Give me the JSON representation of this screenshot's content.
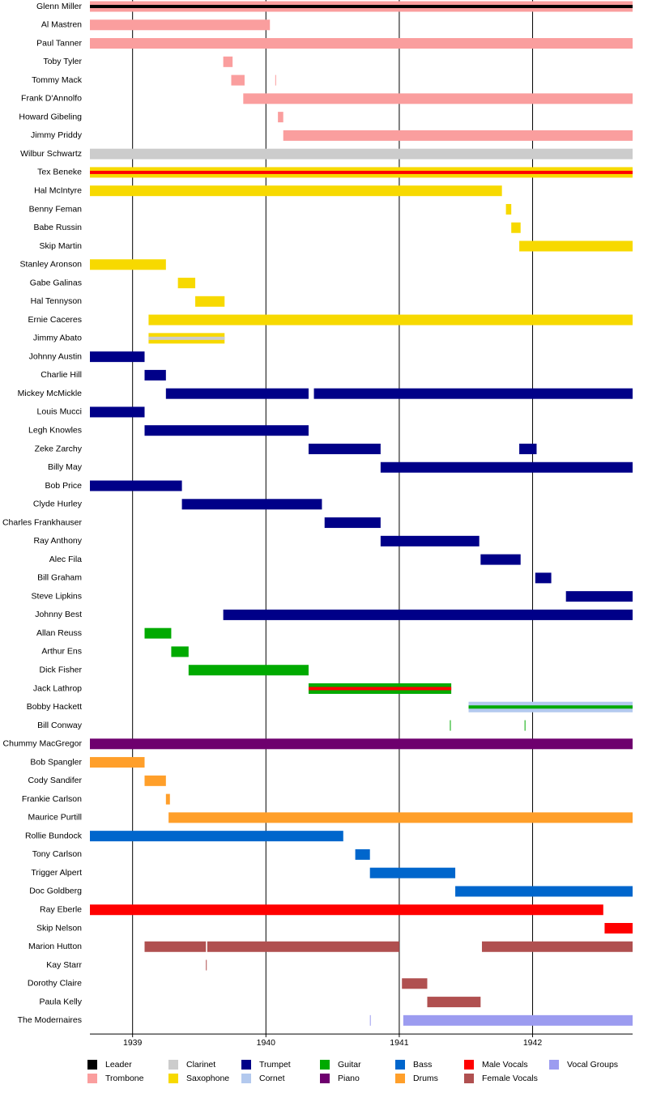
{
  "chart_data": {
    "type": "timeline",
    "xlim": [
      1938.68,
      1942.75
    ],
    "xticks": [
      1939,
      1940,
      1941,
      1942
    ],
    "grid": true,
    "roles": [
      {
        "name": "Leader",
        "color": "#000000"
      },
      {
        "name": "Trombone",
        "color": "#fa9e9e"
      },
      {
        "name": "Clarinet",
        "color": "#cccccc"
      },
      {
        "name": "Saxophone",
        "color": "#f7d900"
      },
      {
        "name": "Trumpet",
        "color": "#000088"
      },
      {
        "name": "Cornet",
        "color": "#b3c9ee"
      },
      {
        "name": "Guitar",
        "color": "#00aa00"
      },
      {
        "name": "Piano",
        "color": "#6e006e"
      },
      {
        "name": "Bass",
        "color": "#0066cc"
      },
      {
        "name": "Drums",
        "color": "#ff9f2a"
      },
      {
        "name": "Male Vocals",
        "color": "#ff0000"
      },
      {
        "name": "Female Vocals",
        "color": "#b05050"
      },
      {
        "name": "Vocal Groups",
        "color": "#9c9cf0"
      }
    ],
    "members": [
      {
        "name": "Glenn Miller",
        "bars": [
          {
            "start": 1938.68,
            "end": 1942.75,
            "role": 1,
            "stripe": 0
          }
        ]
      },
      {
        "name": "Al Mastren",
        "bars": [
          {
            "start": 1938.68,
            "end": 1940.03,
            "role": 1
          }
        ]
      },
      {
        "name": "Paul Tanner",
        "bars": [
          {
            "start": 1938.68,
            "end": 1942.75,
            "role": 1
          }
        ]
      },
      {
        "name": "Toby Tyler",
        "bars": [
          {
            "start": 1939.68,
            "end": 1939.75,
            "role": 1
          }
        ]
      },
      {
        "name": "Tommy Mack",
        "bars": [
          {
            "start": 1939.74,
            "end": 1939.84,
            "role": 1
          },
          {
            "start": 1940.07,
            "end": 1940.075,
            "role": 1
          }
        ]
      },
      {
        "name": "Frank D'Annolfo",
        "bars": [
          {
            "start": 1939.83,
            "end": 1942.75,
            "role": 1
          }
        ]
      },
      {
        "name": "Howard Gibeling",
        "bars": [
          {
            "start": 1940.09,
            "end": 1940.13,
            "role": 1
          }
        ]
      },
      {
        "name": "Jimmy Priddy",
        "bars": [
          {
            "start": 1940.13,
            "end": 1942.75,
            "role": 1
          }
        ]
      },
      {
        "name": "Wilbur Schwartz",
        "bars": [
          {
            "start": 1938.68,
            "end": 1942.75,
            "role": 2
          }
        ]
      },
      {
        "name": "Tex Beneke",
        "bars": [
          {
            "start": 1938.68,
            "end": 1942.75,
            "role": 3,
            "stripe": 10
          }
        ]
      },
      {
        "name": "Hal McIntyre",
        "bars": [
          {
            "start": 1938.68,
            "end": 1941.77,
            "role": 3
          }
        ]
      },
      {
        "name": "Benny Feman",
        "bars": [
          {
            "start": 1941.8,
            "end": 1941.84,
            "role": 3
          }
        ]
      },
      {
        "name": "Babe Russin",
        "bars": [
          {
            "start": 1941.84,
            "end": 1941.91,
            "role": 3
          }
        ]
      },
      {
        "name": "Skip Martin",
        "bars": [
          {
            "start": 1941.9,
            "end": 1942.75,
            "role": 3
          }
        ]
      },
      {
        "name": "Stanley Aronson",
        "bars": [
          {
            "start": 1938.68,
            "end": 1939.25,
            "role": 3
          }
        ]
      },
      {
        "name": "Gabe Galinas",
        "bars": [
          {
            "start": 1939.34,
            "end": 1939.47,
            "role": 3
          }
        ]
      },
      {
        "name": "Hal Tennyson",
        "bars": [
          {
            "start": 1939.47,
            "end": 1939.69,
            "role": 3
          }
        ]
      },
      {
        "name": "Ernie Caceres",
        "bars": [
          {
            "start": 1939.12,
            "end": 1942.75,
            "role": 3
          }
        ]
      },
      {
        "name": "Jimmy Abato",
        "bars": [
          {
            "start": 1939.12,
            "end": 1939.69,
            "role": 3,
            "stripe": 2
          }
        ]
      },
      {
        "name": "Johnny Austin",
        "bars": [
          {
            "start": 1938.68,
            "end": 1939.09,
            "role": 4
          }
        ]
      },
      {
        "name": "Charlie Hill",
        "bars": [
          {
            "start": 1939.09,
            "end": 1939.25,
            "role": 4
          }
        ]
      },
      {
        "name": "Mickey McMickle",
        "bars": [
          {
            "start": 1939.25,
            "end": 1940.32,
            "role": 4
          },
          {
            "start": 1940.36,
            "end": 1942.75,
            "role": 4
          }
        ]
      },
      {
        "name": "Louis Mucci",
        "bars": [
          {
            "start": 1938.68,
            "end": 1939.09,
            "role": 4
          }
        ]
      },
      {
        "name": "Legh Knowles",
        "bars": [
          {
            "start": 1939.09,
            "end": 1940.32,
            "role": 4
          }
        ]
      },
      {
        "name": "Zeke Zarchy",
        "bars": [
          {
            "start": 1940.32,
            "end": 1940.86,
            "role": 4
          },
          {
            "start": 1941.9,
            "end": 1942.03,
            "role": 4
          }
        ]
      },
      {
        "name": "Billy May",
        "bars": [
          {
            "start": 1940.86,
            "end": 1942.75,
            "role": 4
          }
        ]
      },
      {
        "name": "Bob Price",
        "bars": [
          {
            "start": 1938.68,
            "end": 1939.37,
            "role": 4
          }
        ]
      },
      {
        "name": "Clyde Hurley",
        "bars": [
          {
            "start": 1939.37,
            "end": 1940.42,
            "role": 4
          }
        ]
      },
      {
        "name": "Charles Frankhauser",
        "bars": [
          {
            "start": 1940.44,
            "end": 1940.86,
            "role": 4
          }
        ]
      },
      {
        "name": "Ray Anthony",
        "bars": [
          {
            "start": 1940.86,
            "end": 1941.6,
            "role": 4
          }
        ]
      },
      {
        "name": "Alec Fila",
        "bars": [
          {
            "start": 1941.61,
            "end": 1941.91,
            "role": 4
          }
        ]
      },
      {
        "name": "Bill Graham",
        "bars": [
          {
            "start": 1942.02,
            "end": 1942.14,
            "role": 4
          }
        ]
      },
      {
        "name": "Steve Lipkins",
        "bars": [
          {
            "start": 1942.25,
            "end": 1942.75,
            "role": 4
          }
        ]
      },
      {
        "name": "Johnny Best",
        "bars": [
          {
            "start": 1939.68,
            "end": 1942.75,
            "role": 4
          }
        ]
      },
      {
        "name": "Allan Reuss",
        "bars": [
          {
            "start": 1939.09,
            "end": 1939.29,
            "role": 6
          }
        ]
      },
      {
        "name": "Arthur Ens",
        "bars": [
          {
            "start": 1939.29,
            "end": 1939.42,
            "role": 6
          }
        ]
      },
      {
        "name": "Dick Fisher",
        "bars": [
          {
            "start": 1939.42,
            "end": 1940.32,
            "role": 6
          }
        ]
      },
      {
        "name": "Jack Lathrop",
        "bars": [
          {
            "start": 1940.32,
            "end": 1941.39,
            "role": 6,
            "stripe": 10
          }
        ]
      },
      {
        "name": "Bobby Hackett",
        "bars": [
          {
            "start": 1941.52,
            "end": 1942.75,
            "role": 5,
            "stripe": 6
          }
        ]
      },
      {
        "name": "Bill Conway",
        "bars": [
          {
            "start": 1941.38,
            "end": 1941.385,
            "role": 6
          },
          {
            "start": 1941.94,
            "end": 1941.945,
            "role": 6
          }
        ]
      },
      {
        "name": "Chummy MacGregor",
        "bars": [
          {
            "start": 1938.68,
            "end": 1942.75,
            "role": 7
          }
        ]
      },
      {
        "name": "Bob Spangler",
        "bars": [
          {
            "start": 1938.68,
            "end": 1939.09,
            "role": 9
          }
        ]
      },
      {
        "name": "Cody Sandifer",
        "bars": [
          {
            "start": 1939.09,
            "end": 1939.25,
            "role": 9
          }
        ]
      },
      {
        "name": "Frankie Carlson",
        "bars": [
          {
            "start": 1939.25,
            "end": 1939.28,
            "role": 9
          }
        ]
      },
      {
        "name": "Maurice Purtill",
        "bars": [
          {
            "start": 1939.27,
            "end": 1942.75,
            "role": 9
          }
        ]
      },
      {
        "name": "Rollie Bundock",
        "bars": [
          {
            "start": 1938.68,
            "end": 1940.58,
            "role": 8
          }
        ]
      },
      {
        "name": "Tony Carlson",
        "bars": [
          {
            "start": 1940.67,
            "end": 1940.78,
            "role": 8
          }
        ]
      },
      {
        "name": "Trigger Alpert",
        "bars": [
          {
            "start": 1940.78,
            "end": 1941.42,
            "role": 8
          }
        ]
      },
      {
        "name": "Doc Goldberg",
        "bars": [
          {
            "start": 1941.42,
            "end": 1942.75,
            "role": 8
          }
        ]
      },
      {
        "name": "Ray Eberle",
        "bars": [
          {
            "start": 1938.68,
            "end": 1942.53,
            "role": 10
          }
        ]
      },
      {
        "name": "Skip Nelson",
        "bars": [
          {
            "start": 1942.54,
            "end": 1942.75,
            "role": 10
          }
        ]
      },
      {
        "name": "Marion Hutton",
        "bars": [
          {
            "start": 1939.09,
            "end": 1939.55,
            "role": 11
          },
          {
            "start": 1939.56,
            "end": 1941.0,
            "role": 11
          },
          {
            "start": 1941.62,
            "end": 1942.75,
            "role": 11
          }
        ]
      },
      {
        "name": "Kay Starr",
        "bars": [
          {
            "start": 1939.55,
            "end": 1939.555,
            "role": 11
          }
        ]
      },
      {
        "name": "Dorothy Claire",
        "bars": [
          {
            "start": 1941.02,
            "end": 1941.21,
            "role": 11
          }
        ]
      },
      {
        "name": "Paula Kelly",
        "bars": [
          {
            "start": 1941.21,
            "end": 1941.61,
            "role": 11
          }
        ]
      },
      {
        "name": "The Modernaires",
        "bars": [
          {
            "start": 1940.78,
            "end": 1940.785,
            "role": 12
          },
          {
            "start": 1941.03,
            "end": 1942.75,
            "role": 12
          }
        ]
      }
    ]
  }
}
